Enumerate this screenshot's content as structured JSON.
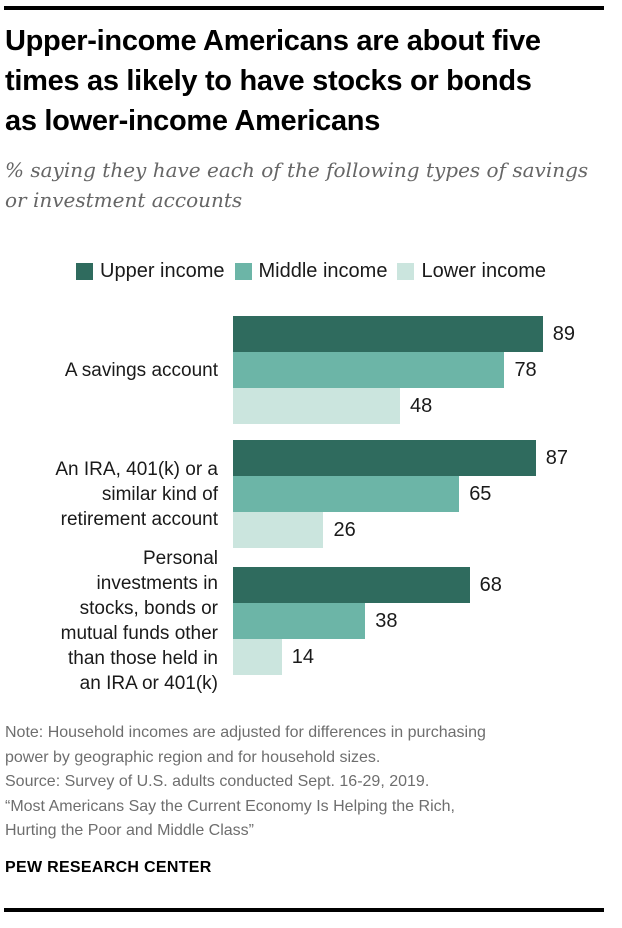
{
  "header": {
    "title_lines": [
      "Upper-income Americans are about five",
      "times as likely to have stocks or bonds",
      "as lower-income Americans"
    ],
    "subtitle_lines": [
      "% saying they have each of the following types of savings",
      "or investment accounts"
    ]
  },
  "legend": [
    {
      "label": "Upper income",
      "color": "#2F6B5E"
    },
    {
      "label": "Middle income",
      "color": "#6CB5A7"
    },
    {
      "label": "Lower income",
      "color": "#CBE5DE"
    }
  ],
  "chart_data": {
    "type": "bar",
    "orientation": "horizontal",
    "unit": "%",
    "xlim": [
      0,
      100
    ],
    "grid": false,
    "legend_position": "top-center",
    "series_names": [
      "Upper income",
      "Middle income",
      "Lower income"
    ],
    "series_colors": [
      "#2F6B5E",
      "#6CB5A7",
      "#CBE5DE"
    ],
    "categories": [
      {
        "label": "A savings account",
        "label_lines": [
          "A savings account"
        ],
        "values": [
          89,
          78,
          48
        ]
      },
      {
        "label": "An IRA, 401(k) or a similar kind of retirement account",
        "label_lines": [
          "An IRA, 401(k) or a",
          "similar kind of",
          "retirement account"
        ],
        "values": [
          87,
          65,
          26
        ]
      },
      {
        "label": "Personal investments in stocks, bonds or mutual funds other than those held in an IRA or 401(k)",
        "label_lines": [
          "Personal",
          "investments in",
          "stocks, bonds or",
          "mutual funds other",
          "than those held in",
          "an IRA or 401(k)"
        ],
        "values": [
          68,
          38,
          14
        ]
      }
    ]
  },
  "footer": {
    "note_lines": [
      "Note: Household incomes are adjusted for differences in purchasing",
      "power by geographic region and for household sizes.",
      "Source: Survey of U.S. adults conducted Sept. 16-29, 2019.",
      "“Most Americans Say the Current Economy Is Helping the Rich,",
      "Hurting the Poor and Middle Class”"
    ],
    "brand": "PEW RESEARCH CENTER"
  }
}
